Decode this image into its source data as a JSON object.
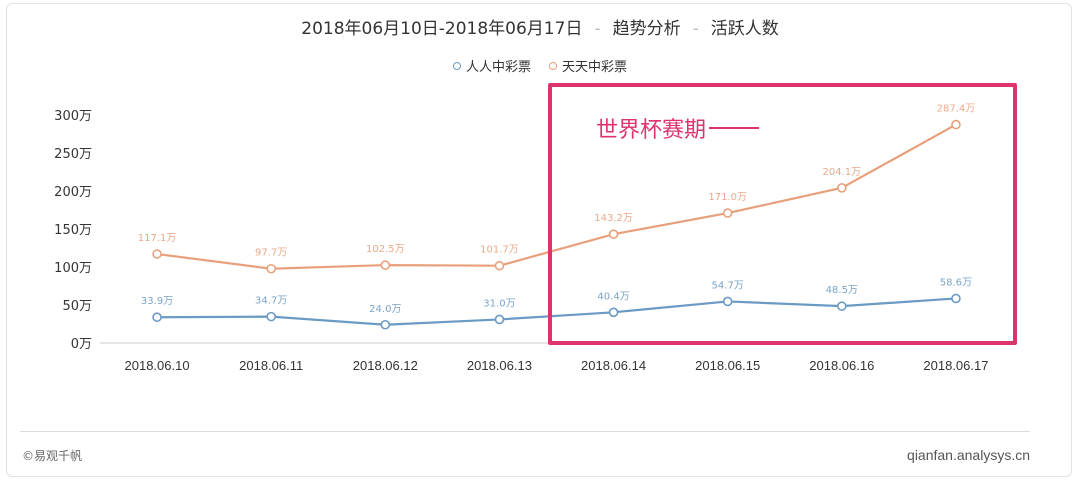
{
  "title": {
    "date_range": "2018年06月10日-2018年06月17日",
    "separator": "-",
    "analysis": "趋势分析",
    "metric": "活跃人数"
  },
  "colors": {
    "series1": "#6b9ac4",
    "series2": "#e8a07c",
    "annotation": "#e0336e"
  },
  "annotation": {
    "label": "世界杯赛期"
  },
  "footer": {
    "copyright": "©易观千帆",
    "site": "qianfan.analysys.cn"
  },
  "chart_data": {
    "type": "line",
    "x": [
      "2018.06.10",
      "2018.06.11",
      "2018.06.12",
      "2018.06.13",
      "2018.06.14",
      "2018.06.15",
      "2018.06.16",
      "2018.06.17"
    ],
    "ylim": [
      0,
      300
    ],
    "yticks": [
      0,
      50,
      100,
      150,
      200,
      250,
      300
    ],
    "ytick_labels": [
      "0万",
      "50万",
      "100万",
      "150万",
      "200万",
      "250万",
      "300万"
    ],
    "grid": false,
    "legend_position": "top-center",
    "series": [
      {
        "name": "人人中彩票",
        "color": "#6b9ac4",
        "values": [
          33.9,
          34.7,
          24.0,
          31.0,
          40.4,
          54.7,
          48.5,
          58.6
        ],
        "labels": [
          "33.9万",
          "34.7万",
          "24.0万",
          "31.0万",
          "40.4万",
          "54.7万",
          "48.5万",
          "58.6万"
        ]
      },
      {
        "name": "天天中彩票",
        "color": "#e8a07c",
        "values": [
          117.1,
          97.7,
          102.5,
          101.7,
          143.2,
          171.0,
          204.1,
          287.4
        ],
        "labels": [
          "117.1万",
          "97.7万",
          "102.5万",
          "101.7万",
          "143.2万",
          "171.0万",
          "204.1万",
          "287.4万"
        ]
      }
    ]
  }
}
